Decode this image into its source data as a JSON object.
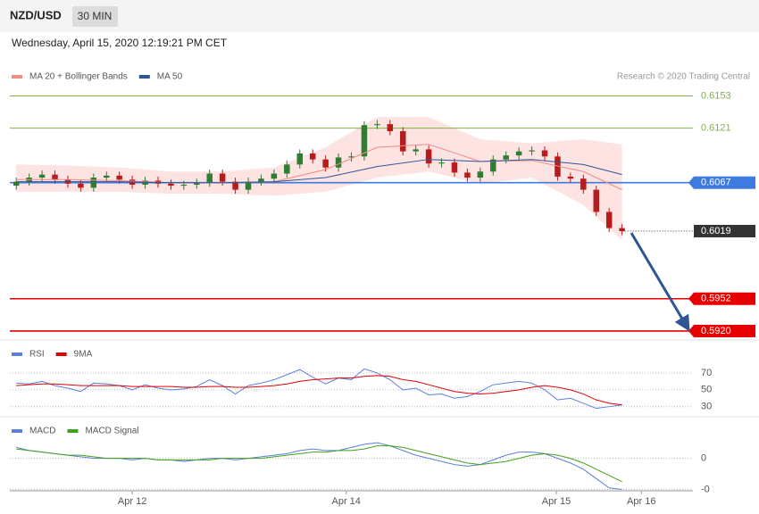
{
  "header": {
    "symbol": "NZD/USD",
    "timeframe": "30 MIN",
    "timestamp": "Wednesday, April 15, 2020 12:19:21 PM CET",
    "credit": "Research © 2020 Trading Central"
  },
  "chart_data": [
    {
      "type": "candlestick",
      "xlim": [
        -0.5,
        52.5
      ],
      "xticks": [
        {
          "value": 9,
          "label": "Apr 12"
        },
        {
          "value": 25.6,
          "label": "Apr 14"
        },
        {
          "value": 41.9,
          "label": "Apr 15"
        },
        {
          "value": 48.5,
          "label": "Apr 16"
        }
      ],
      "ylim": [
        0.5912,
        0.6164
      ],
      "candles": {
        "up_color": "#2e7d32",
        "down_color": "#b71c1c",
        "open": [
          0.6064,
          0.6068,
          0.6072,
          0.6075,
          0.607,
          0.6066,
          0.6062,
          0.6072,
          0.6074,
          0.607,
          0.6065,
          0.6069,
          0.6066,
          0.6064,
          0.6065,
          0.6067,
          0.6076,
          0.6068,
          0.606,
          0.6068,
          0.6071,
          0.6076,
          0.6085,
          0.6096,
          0.609,
          0.6082,
          0.6092,
          0.6093,
          0.6124,
          0.6125,
          0.6118,
          0.6098,
          0.61,
          0.6086,
          0.6087,
          0.6077,
          0.6072,
          0.6078,
          0.609,
          0.6094,
          0.6098,
          0.6099,
          0.6093,
          0.6073,
          0.6071,
          0.606,
          0.6038,
          0.6022
        ],
        "high": [
          0.6072,
          0.6076,
          0.6079,
          0.6079,
          0.6074,
          0.607,
          0.6076,
          0.6078,
          0.6078,
          0.6074,
          0.6073,
          0.6073,
          0.607,
          0.6069,
          0.6071,
          0.608,
          0.608,
          0.6072,
          0.6072,
          0.6075,
          0.608,
          0.6089,
          0.61,
          0.61,
          0.6094,
          0.6096,
          0.6097,
          0.6128,
          0.6129,
          0.6129,
          0.6122,
          0.6104,
          0.6104,
          0.6091,
          0.6091,
          0.6081,
          0.6082,
          0.6094,
          0.6098,
          0.6102,
          0.6103,
          0.6103,
          0.6097,
          0.6077,
          0.6075,
          0.6064,
          0.6042,
          0.6026
        ],
        "low": [
          0.606,
          0.6064,
          0.6068,
          0.6066,
          0.6062,
          0.6058,
          0.6058,
          0.6068,
          0.6066,
          0.6061,
          0.6061,
          0.6062,
          0.606,
          0.606,
          0.6061,
          0.6063,
          0.6064,
          0.6056,
          0.6056,
          0.6064,
          0.6067,
          0.6072,
          0.6081,
          0.6086,
          0.6078,
          0.6078,
          0.6088,
          0.6089,
          0.612,
          0.6114,
          0.6094,
          0.6094,
          0.6082,
          0.6082,
          0.6073,
          0.6068,
          0.6068,
          0.6074,
          0.6086,
          0.609,
          0.6094,
          0.6089,
          0.6069,
          0.6067,
          0.6056,
          0.6034,
          0.6018,
          0.6015
        ],
        "close": [
          0.6068,
          0.6072,
          0.6075,
          0.607,
          0.6066,
          0.6062,
          0.6072,
          0.6074,
          0.607,
          0.6065,
          0.6069,
          0.6066,
          0.6064,
          0.6065,
          0.6067,
          0.6076,
          0.6068,
          0.606,
          0.6068,
          0.6071,
          0.6076,
          0.6085,
          0.6096,
          0.609,
          0.6082,
          0.6092,
          0.6093,
          0.6124,
          0.6125,
          0.6118,
          0.6098,
          0.61,
          0.6086,
          0.6087,
          0.6077,
          0.6072,
          0.6078,
          0.609,
          0.6094,
          0.6098,
          0.6099,
          0.6093,
          0.6073,
          0.6071,
          0.606,
          0.6038,
          0.6022,
          0.6019
        ]
      },
      "series": [
        {
          "name": "MA 20 + Bollinger Bands",
          "color": "#f28b82",
          "band_color": "#fde3e1",
          "x": [
            0,
            4,
            8,
            12,
            16,
            20,
            24,
            28,
            32,
            36,
            40,
            44,
            47
          ],
          "values": [
            0.607,
            0.607,
            0.6069,
            0.6067,
            0.6067,
            0.6068,
            0.608,
            0.6102,
            0.6105,
            0.6088,
            0.6089,
            0.6078,
            0.606
          ],
          "upper": [
            0.6085,
            0.6084,
            0.6082,
            0.6078,
            0.6078,
            0.6082,
            0.6102,
            0.6132,
            0.6132,
            0.611,
            0.6106,
            0.611,
            0.6105
          ],
          "lower": [
            0.6058,
            0.6058,
            0.6058,
            0.6056,
            0.6056,
            0.6054,
            0.6058,
            0.6072,
            0.6078,
            0.6066,
            0.6072,
            0.6045,
            0.601
          ]
        },
        {
          "name": "MA 50",
          "color": "#2f5597",
          "x": [
            0,
            4,
            8,
            12,
            16,
            20,
            24,
            28,
            32,
            36,
            40,
            44,
            47
          ],
          "values": [
            0.6068,
            0.6068,
            0.6068,
            0.6067,
            0.6067,
            0.6068,
            0.6072,
            0.6083,
            0.609,
            0.6088,
            0.609,
            0.6085,
            0.6075
          ]
        }
      ],
      "levels": [
        {
          "value": 0.6153,
          "color": "#7cb342",
          "box": false
        },
        {
          "value": 0.6121,
          "color": "#7cb342",
          "box": false
        },
        {
          "value": 0.6067,
          "color": "#3d7be0",
          "box": true
        },
        {
          "value": 0.5952,
          "color": "#e60000",
          "box": true
        },
        {
          "value": 0.592,
          "label": "0.5920",
          "color": "#e60000",
          "box": true
        }
      ],
      "last_price": {
        "value": 0.6019,
        "color": "#333333"
      }
    },
    {
      "type": "line",
      "ylim": [
        18,
        105
      ],
      "yticks": [
        30,
        50,
        70
      ],
      "series": [
        {
          "name": "RSI",
          "color": "#5b7fde",
          "values": [
            58,
            57,
            60,
            55,
            52,
            48,
            58,
            57,
            55,
            50,
            56,
            52,
            50,
            51,
            54,
            62,
            55,
            45,
            55,
            58,
            62,
            68,
            74,
            65,
            57,
            64,
            62,
            75,
            70,
            62,
            50,
            52,
            44,
            45,
            40,
            42,
            48,
            56,
            58,
            60,
            58,
            50,
            38,
            40,
            34,
            28,
            30,
            32
          ]
        },
        {
          "name": "9MA",
          "color": "#e00000",
          "values": [
            55,
            56,
            57,
            57,
            56,
            55,
            55,
            55,
            55,
            54,
            54,
            54,
            54,
            53,
            53,
            54,
            54,
            53,
            53,
            54,
            55,
            57,
            60,
            62,
            63,
            64,
            64,
            66,
            67,
            66,
            62,
            60,
            56,
            52,
            48,
            46,
            45,
            46,
            48,
            50,
            53,
            55,
            53,
            50,
            45,
            38,
            34,
            32
          ]
        }
      ]
    },
    {
      "type": "line",
      "ylim": [
        -0.0022,
        0.0025
      ],
      "yticks": [
        {
          "value": -0.002,
          "label": "-0"
        },
        0
      ],
      "series": [
        {
          "name": "MACD",
          "color": "#5b7fde",
          "values": [
            0.0007,
            0.0005,
            0.0004,
            0.0003,
            0.0002,
            0.0001,
            0.0,
            0.0,
            0.0,
            -0.0001,
            0.0,
            -0.0001,
            -0.0001,
            -0.0002,
            -0.0001,
            0.0,
            0.0,
            -0.0001,
            0.0,
            0.0001,
            0.0002,
            0.0003,
            0.0005,
            0.0006,
            0.0005,
            0.0005,
            0.0007,
            0.0009,
            0.001,
            0.0008,
            0.0005,
            0.0002,
            0.0,
            -0.0002,
            -0.0004,
            -0.0005,
            -0.0004,
            -0.0001,
            0.0002,
            0.0004,
            0.0004,
            0.0003,
            0.0,
            -0.0003,
            -0.0007,
            -0.0013,
            -0.0019,
            -0.002
          ]
        },
        {
          "name": "MACD Signal",
          "color": "#43a01a",
          "values": [
            0.0006,
            0.0005,
            0.0004,
            0.0003,
            0.0002,
            0.0002,
            0.0001,
            0.0,
            0.0,
            0.0,
            0.0,
            -0.0001,
            -0.0001,
            -0.0001,
            -0.0001,
            -0.0001,
            0.0,
            0.0,
            0.0,
            0.0,
            0.0001,
            0.0002,
            0.0003,
            0.0004,
            0.0004,
            0.0005,
            0.0005,
            0.0006,
            0.0008,
            0.0008,
            0.0007,
            0.0005,
            0.0003,
            0.0001,
            -0.0001,
            -0.0003,
            -0.0004,
            -0.0003,
            -0.0002,
            0.0,
            0.0002,
            0.0003,
            0.0002,
            0.0,
            -0.0003,
            -0.0007,
            -0.0011,
            -0.0015
          ]
        }
      ]
    }
  ]
}
